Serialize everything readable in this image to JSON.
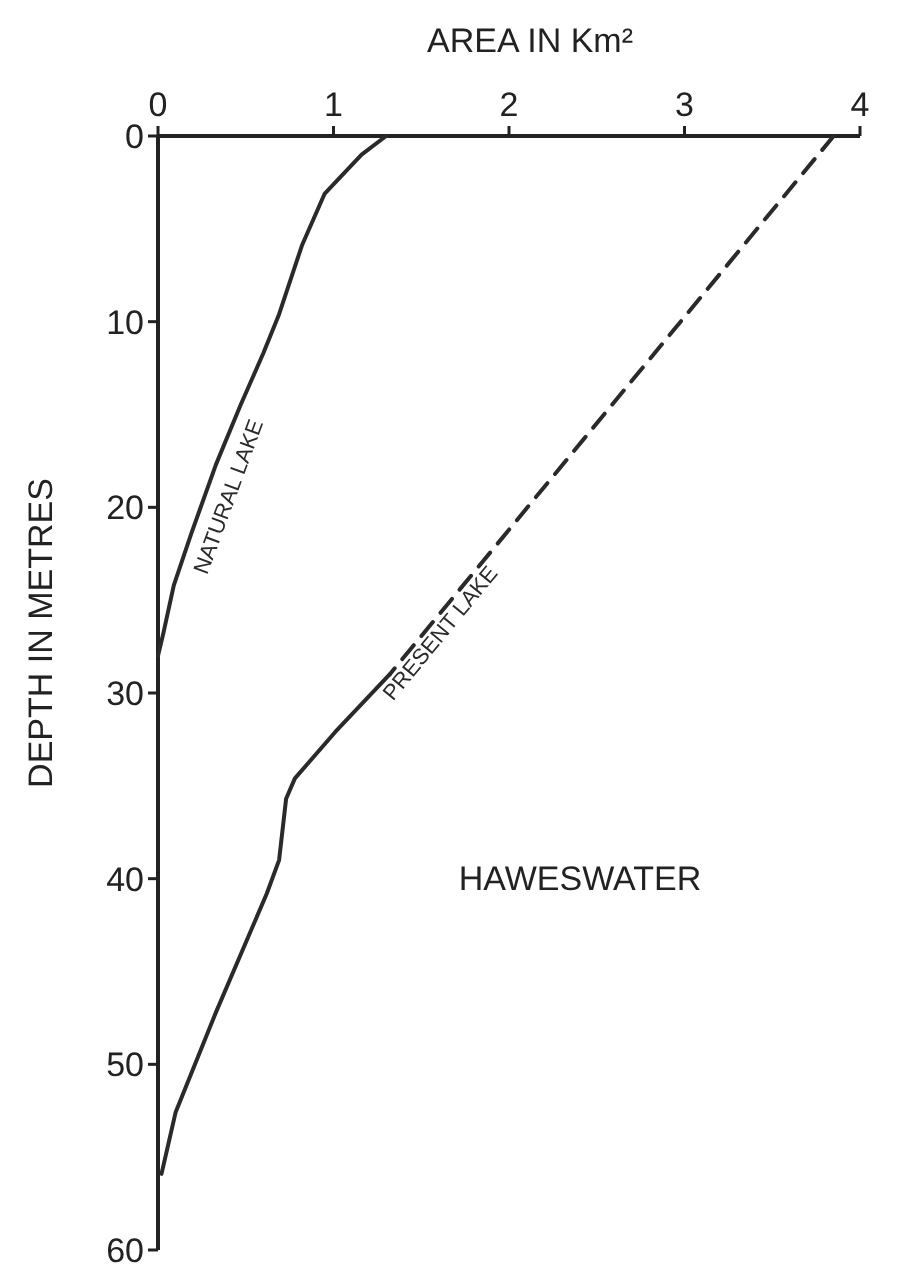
{
  "chart_data": {
    "type": "line",
    "xlabel": "AREA IN Km²",
    "ylabel": "DEPTH IN METRES",
    "xlim": [
      0,
      4
    ],
    "xticks": [
      0,
      1,
      2,
      3,
      4
    ],
    "ylim": [
      60,
      0
    ],
    "yticks": [
      0,
      10,
      20,
      30,
      40,
      50,
      60
    ],
    "grid": false,
    "annotations": [
      "HAWESWATER"
    ],
    "series": [
      {
        "name": "NATURAL LAKE",
        "color": "#2a2a2a",
        "line_style": "solid",
        "x": [
          1.3,
          1.16,
          0.95,
          0.82,
          0.69,
          0.6,
          0.47,
          0.33,
          0.19,
          0.09,
          0.03,
          0
        ],
        "values": [
          0,
          1,
          3.1,
          5.9,
          9.6,
          11.7,
          14.5,
          17.7,
          21.4,
          24.2,
          26.8,
          28
        ]
      },
      {
        "name": "PRESENT LAKE",
        "color": "#2a2a2a",
        "line_style": "solid",
        "x": [
          1.32,
          1.01,
          0.78,
          0.73,
          0.69,
          0.62,
          0.33,
          0.1,
          0.02
        ],
        "values": [
          29,
          32.1,
          34.6,
          35.7,
          39,
          40.8,
          47.2,
          52.6,
          55.9
        ]
      },
      {
        "color": "#2a2a2a",
        "line_style": "dashed",
        "x": [
          3.85,
          1.32
        ],
        "values": [
          0,
          29
        ]
      }
    ]
  }
}
